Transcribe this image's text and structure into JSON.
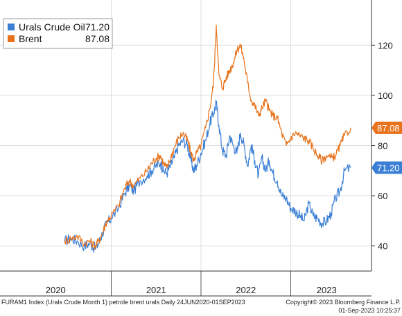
{
  "chart_data": {
    "type": "line",
    "ylim": [
      30,
      138
    ],
    "y_ticks": [
      40,
      60,
      80,
      100,
      120
    ],
    "year_labels": [
      "2020",
      "2021",
      "2022",
      "2023"
    ],
    "grid": true,
    "legend_position": "top-left",
    "series": [
      {
        "name": "Urals Crude Oil",
        "last_value": "71.20",
        "color": "#3a7fd5",
        "values": [
          [
            2020.48,
            42
          ],
          [
            2020.55,
            43
          ],
          [
            2020.62,
            42
          ],
          [
            2020.7,
            40
          ],
          [
            2020.76,
            41
          ],
          [
            2020.82,
            39
          ],
          [
            2020.86,
            41
          ],
          [
            2020.9,
            45
          ],
          [
            2020.95,
            49
          ],
          [
            2021.0,
            51
          ],
          [
            2021.08,
            55
          ],
          [
            2021.15,
            61
          ],
          [
            2021.2,
            64
          ],
          [
            2021.25,
            62
          ],
          [
            2021.32,
            66
          ],
          [
            2021.4,
            68
          ],
          [
            2021.45,
            70
          ],
          [
            2021.5,
            72
          ],
          [
            2021.55,
            73
          ],
          [
            2021.58,
            70
          ],
          [
            2021.62,
            69
          ],
          [
            2021.66,
            72
          ],
          [
            2021.7,
            75
          ],
          [
            2021.75,
            80
          ],
          [
            2021.8,
            82
          ],
          [
            2021.85,
            80
          ],
          [
            2021.88,
            75
          ],
          [
            2021.92,
            70
          ],
          [
            2021.95,
            72
          ],
          [
            2022.0,
            77
          ],
          [
            2022.05,
            82
          ],
          [
            2022.1,
            89
          ],
          [
            2022.14,
            93
          ],
          [
            2022.17,
            97
          ],
          [
            2022.2,
            88
          ],
          [
            2022.24,
            78
          ],
          [
            2022.28,
            76
          ],
          [
            2022.32,
            84
          ],
          [
            2022.36,
            80
          ],
          [
            2022.4,
            77
          ],
          [
            2022.44,
            85
          ],
          [
            2022.48,
            80
          ],
          [
            2022.52,
            72
          ],
          [
            2022.56,
            80
          ],
          [
            2022.6,
            74
          ],
          [
            2022.64,
            68
          ],
          [
            2022.68,
            75
          ],
          [
            2022.72,
            70
          ],
          [
            2022.76,
            74
          ],
          [
            2022.8,
            69
          ],
          [
            2022.85,
            66
          ],
          [
            2022.9,
            60
          ],
          [
            2022.95,
            59
          ],
          [
            2023.0,
            55
          ],
          [
            2023.05,
            54
          ],
          [
            2023.1,
            52
          ],
          [
            2023.15,
            50
          ],
          [
            2023.2,
            57
          ],
          [
            2023.25,
            52
          ],
          [
            2023.3,
            51
          ],
          [
            2023.35,
            49
          ],
          [
            2023.4,
            50
          ],
          [
            2023.45,
            53
          ],
          [
            2023.5,
            59
          ],
          [
            2023.55,
            62
          ],
          [
            2023.6,
            70
          ],
          [
            2023.67,
            71.2
          ]
        ]
      },
      {
        "name": "Brent",
        "last_value": "87.08",
        "color": "#e8731c",
        "values": [
          [
            2020.48,
            42
          ],
          [
            2020.55,
            43
          ],
          [
            2020.62,
            44
          ],
          [
            2020.7,
            41
          ],
          [
            2020.76,
            42
          ],
          [
            2020.82,
            40
          ],
          [
            2020.86,
            42
          ],
          [
            2020.9,
            45
          ],
          [
            2020.95,
            50
          ],
          [
            2021.0,
            52
          ],
          [
            2021.08,
            56
          ],
          [
            2021.15,
            63
          ],
          [
            2021.2,
            66
          ],
          [
            2021.25,
            64
          ],
          [
            2021.32,
            67
          ],
          [
            2021.4,
            70
          ],
          [
            2021.45,
            73
          ],
          [
            2021.5,
            75
          ],
          [
            2021.55,
            76
          ],
          [
            2021.58,
            73
          ],
          [
            2021.62,
            71
          ],
          [
            2021.66,
            75
          ],
          [
            2021.7,
            79
          ],
          [
            2021.75,
            83
          ],
          [
            2021.8,
            85
          ],
          [
            2021.85,
            82
          ],
          [
            2021.88,
            78
          ],
          [
            2021.92,
            74
          ],
          [
            2021.95,
            77
          ],
          [
            2022.0,
            80
          ],
          [
            2022.05,
            87
          ],
          [
            2022.1,
            95
          ],
          [
            2022.14,
            105
          ],
          [
            2022.17,
            128
          ],
          [
            2022.2,
            108
          ],
          [
            2022.24,
            103
          ],
          [
            2022.28,
            107
          ],
          [
            2022.32,
            110
          ],
          [
            2022.36,
            113
          ],
          [
            2022.4,
            118
          ],
          [
            2022.44,
            120
          ],
          [
            2022.48,
            114
          ],
          [
            2022.52,
            105
          ],
          [
            2022.56,
            98
          ],
          [
            2022.6,
            96
          ],
          [
            2022.64,
            92
          ],
          [
            2022.68,
            95
          ],
          [
            2022.72,
            98
          ],
          [
            2022.76,
            94
          ],
          [
            2022.8,
            92
          ],
          [
            2022.85,
            91
          ],
          [
            2022.9,
            85
          ],
          [
            2022.95,
            80
          ],
          [
            2023.0,
            83
          ],
          [
            2023.05,
            85
          ],
          [
            2023.1,
            84
          ],
          [
            2023.15,
            83
          ],
          [
            2023.2,
            82
          ],
          [
            2023.25,
            79
          ],
          [
            2023.3,
            76
          ],
          [
            2023.35,
            74
          ],
          [
            2023.4,
            76
          ],
          [
            2023.45,
            75
          ],
          [
            2023.5,
            76
          ],
          [
            2023.55,
            80
          ],
          [
            2023.6,
            84
          ],
          [
            2023.67,
            87.08
          ]
        ]
      }
    ]
  },
  "footer": {
    "left": "FURAM1 Index (Urals Crude Month 1) petrole brent urals  Daily 24JUN2020-01SEP2023",
    "right_line1": "Copyright© 2023 Bloomberg Finance L.P.",
    "right_line2": "01-Sep-2023 10:25:37"
  }
}
